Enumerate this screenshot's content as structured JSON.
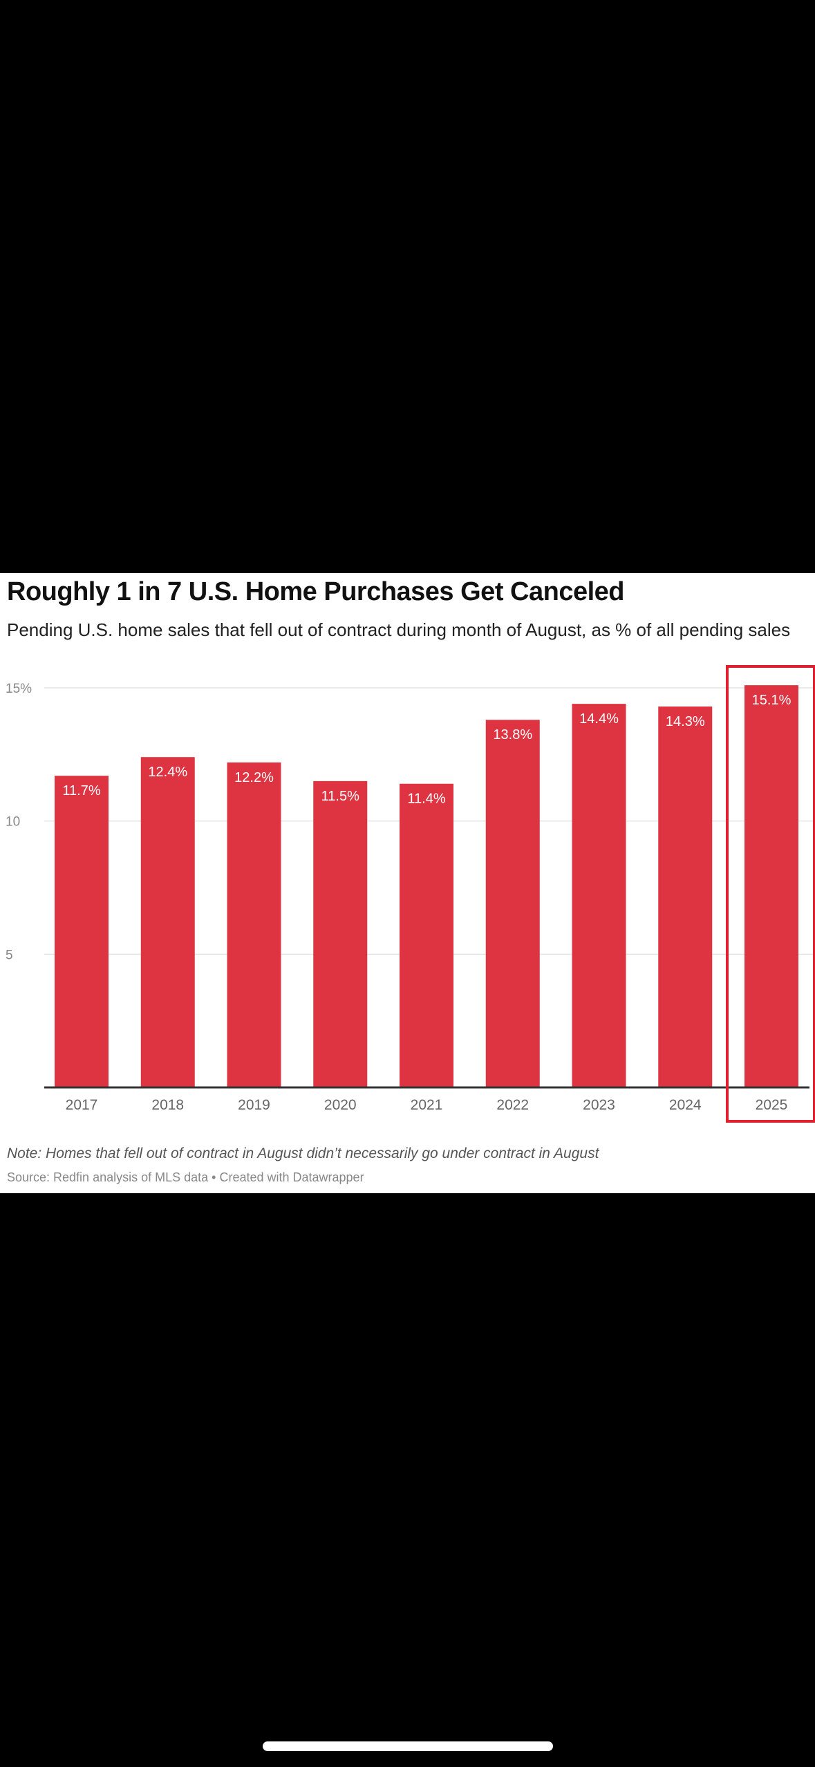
{
  "chart_data": {
    "type": "bar",
    "title": "Roughly 1 in 7 U.S. Home Purchases Get Canceled",
    "subtitle": "Pending U.S. home sales that fell out of contract during month of August, as % of all pending sales",
    "categories": [
      "2017",
      "2018",
      "2019",
      "2020",
      "2021",
      "2022",
      "2023",
      "2024",
      "2025"
    ],
    "values": [
      11.7,
      12.4,
      12.2,
      11.5,
      11.4,
      13.8,
      14.4,
      14.3,
      15.1
    ],
    "value_labels": [
      "11.7%",
      "12.4%",
      "12.2%",
      "11.5%",
      "11.4%",
      "13.8%",
      "14.4%",
      "14.3%",
      "15.1%"
    ],
    "y_ticks": [
      5,
      10,
      15
    ],
    "y_tick_labels": [
      "5",
      "10",
      "15%"
    ],
    "ylim": [
      0,
      15
    ],
    "xlabel": "",
    "ylabel": "",
    "grid": true,
    "highlighted_category": "2025",
    "note": "Note: Homes that fell out of contract in August didn’t necessarily go under contract in August",
    "source": "Source: Redfin analysis of MLS data • Created with Datawrapper",
    "colors": {
      "bar": "#de3341",
      "highlight_box": "#e0202e",
      "grid": "#e4e4e4",
      "baseline": "#333333",
      "value_label": "#ffffff",
      "tick_label": "#666666"
    }
  }
}
